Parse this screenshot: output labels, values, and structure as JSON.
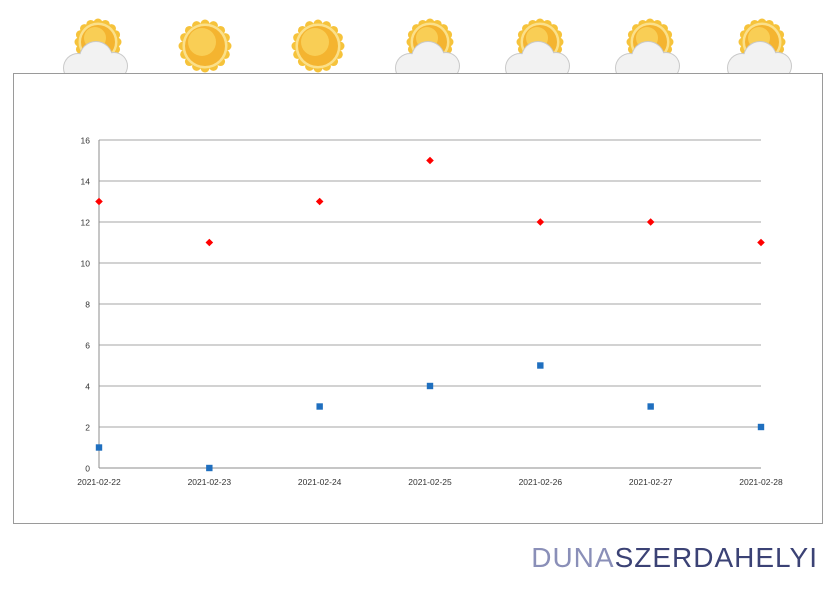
{
  "weather_icons": [
    {
      "icon": "partly-cloudy-icon"
    },
    {
      "icon": "sun-icon"
    },
    {
      "icon": "sun-icon"
    },
    {
      "icon": "partly-cloudy-icon"
    },
    {
      "icon": "partly-cloudy-icon"
    },
    {
      "icon": "partly-cloudy-icon"
    },
    {
      "icon": "partly-cloudy-icon"
    }
  ],
  "chart_data": {
    "type": "scatter",
    "categories": [
      "2021-02-22",
      "2021-02-23",
      "2021-02-24",
      "2021-02-25",
      "2021-02-26",
      "2021-02-27",
      "2021-02-28"
    ],
    "series": [
      {
        "values": [
          13,
          11,
          13,
          15,
          12,
          12,
          11
        ],
        "color": "#ff0000",
        "marker": "diamond"
      },
      {
        "values": [
          1,
          0,
          3,
          4,
          5,
          3,
          2
        ],
        "color": "#1f6fbf",
        "marker": "square"
      }
    ],
    "ylim": [
      0,
      16
    ],
    "yticks": [
      0,
      2,
      4,
      6,
      8,
      10,
      12,
      14,
      16
    ],
    "grid": true,
    "title": "",
    "xlabel": "",
    "ylabel": ""
  },
  "logo": {
    "part1": "DUNA",
    "part2": "SZERDAHELYI"
  }
}
